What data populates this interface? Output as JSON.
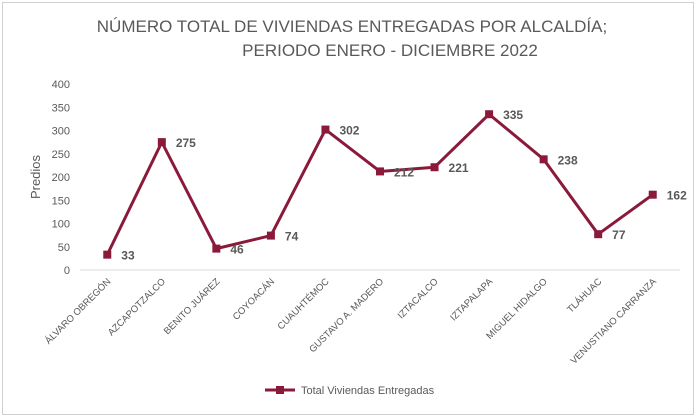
{
  "chart_data": {
    "type": "line",
    "title": [
      "NÚMERO TOTAL DE VIVIENDAS ENTREGADAS POR ALCALDÍA;",
      "PERIODO ENERO - DICIEMBRE 2022"
    ],
    "xlabel": "",
    "ylabel": "Predios",
    "ylim": [
      0,
      400
    ],
    "yticks": [
      0,
      50,
      100,
      150,
      200,
      250,
      300,
      350,
      400
    ],
    "grid": false,
    "legend_position": "bottom",
    "categories": [
      "ÁLVARO OBREGÓN",
      "AZCAPOTZALCO",
      "BENITO JUÁREZ",
      "COYOACÁN",
      "CUAUHTÉMOC",
      "GUSTAVO A. MADERO",
      "IZTACALCO",
      "IZTAPALAPA",
      "MIGUEL HIDALGO",
      "TLÁHUAC",
      "VENUSTIANO CARRANZA"
    ],
    "series": [
      {
        "name": "Total Viviendas Entregadas",
        "color": "#8b1a3a",
        "values": [
          33,
          275,
          46,
          74,
          302,
          212,
          221,
          335,
          238,
          77,
          162
        ]
      }
    ]
  }
}
